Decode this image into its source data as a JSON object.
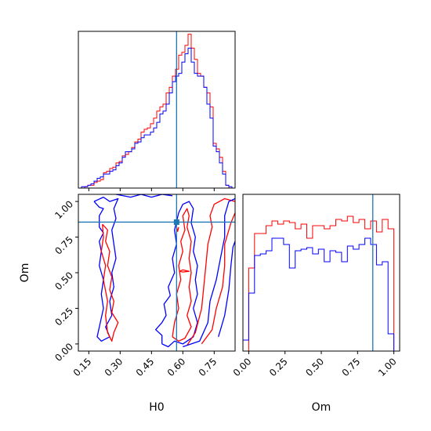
{
  "chart_data": {
    "type": "corner",
    "parameters": [
      "H0",
      "Om"
    ],
    "truth": {
      "H0": 0.57,
      "Om": 0.855,
      "color": "#1f77b4"
    },
    "series": [
      {
        "color": "#ff0000"
      },
      {
        "color": "#0000ff"
      }
    ],
    "panels": [
      {
        "id": "hist-H0",
        "type": "step-histogram",
        "xlim": [
          0.1,
          0.85
        ],
        "ylim": [
          0,
          1.12
        ],
        "xticks": [
          "0.15",
          "0.30",
          "0.45",
          "0.60",
          "0.75"
        ],
        "xtick_values": [
          0.15,
          0.3,
          0.45,
          0.6,
          0.75
        ],
        "show_tick_labels": false,
        "bin_edges": [
          0.1,
          0.115,
          0.13,
          0.145,
          0.16,
          0.175,
          0.19,
          0.205,
          0.22,
          0.235,
          0.25,
          0.265,
          0.28,
          0.295,
          0.31,
          0.325,
          0.34,
          0.355,
          0.37,
          0.385,
          0.4,
          0.415,
          0.43,
          0.445,
          0.46,
          0.475,
          0.49,
          0.505,
          0.52,
          0.535,
          0.55,
          0.565,
          0.58,
          0.595,
          0.61,
          0.625,
          0.64,
          0.655,
          0.67,
          0.685,
          0.7,
          0.715,
          0.73,
          0.745,
          0.76,
          0.775,
          0.79,
          0.805,
          0.82,
          0.835,
          0.85
        ],
        "series": [
          {
            "color": "#ff0000",
            "values": [
              0,
              0,
              0.01,
              0.02,
              0.02,
              0.04,
              0.05,
              0.06,
              0.11,
              0.12,
              0.14,
              0.15,
              0.18,
              0.19,
              0.23,
              0.24,
              0.26,
              0.29,
              0.33,
              0.35,
              0.4,
              0.42,
              0.43,
              0.46,
              0.5,
              0.55,
              0.58,
              0.6,
              0.68,
              0.72,
              0.8,
              0.85,
              0.95,
              0.97,
              1.02,
              1.1,
              1.0,
              0.92,
              0.82,
              0.8,
              0.72,
              0.68,
              0.58,
              0.32,
              0.28,
              0.22,
              0.12,
              0.02,
              0,
              0
            ]
          },
          {
            "color": "#0000ff",
            "values": [
              0,
              0.01,
              0.01,
              0.02,
              0.03,
              0.05,
              0.07,
              0.08,
              0.1,
              0.1,
              0.12,
              0.13,
              0.16,
              0.18,
              0.22,
              0.26,
              0.26,
              0.28,
              0.32,
              0.33,
              0.36,
              0.38,
              0.38,
              0.4,
              0.43,
              0.47,
              0.53,
              0.55,
              0.6,
              0.68,
              0.76,
              0.8,
              0.82,
              0.9,
              0.96,
              1.0,
              0.9,
              0.82,
              0.8,
              0.8,
              0.72,
              0.6,
              0.5,
              0.3,
              0.26,
              0.18,
              0.1,
              0.02,
              0.01,
              0
            ]
          }
        ]
      },
      {
        "id": "contour-H0-Om",
        "type": "contour",
        "xlim": [
          0.1,
          0.85
        ],
        "ylim": [
          -0.05,
          1.05
        ],
        "xticks": [
          "0.15",
          "0.30",
          "0.45",
          "0.60",
          "0.75"
        ],
        "xtick_values": [
          0.15,
          0.3,
          0.45,
          0.6,
          0.75
        ],
        "yticks": [
          "0.00",
          "0.25",
          "0.50",
          "0.75",
          "1.00"
        ],
        "ytick_values": [
          0.0,
          0.25,
          0.5,
          0.75,
          1.0
        ],
        "xlabel": "H0",
        "ylabel": "Om",
        "contours": [
          {
            "color": "#0000ff",
            "points": [
              [
                0.175,
                1.0
              ],
              [
                0.2,
                0.96
              ],
              [
                0.22,
                0.95
              ],
              [
                0.2,
                0.9
              ],
              [
                0.2,
                0.82
              ],
              [
                0.22,
                0.78
              ],
              [
                0.2,
                0.72
              ],
              [
                0.21,
                0.65
              ],
              [
                0.2,
                0.55
              ],
              [
                0.22,
                0.45
              ],
              [
                0.21,
                0.35
              ],
              [
                0.22,
                0.25
              ],
              [
                0.205,
                0.15
              ],
              [
                0.19,
                0.05
              ],
              [
                0.21,
                0.02
              ],
              [
                0.25,
                0.05
              ],
              [
                0.23,
                0.12
              ],
              [
                0.26,
                0.2
              ],
              [
                0.25,
                0.3
              ],
              [
                0.27,
                0.4
              ],
              [
                0.26,
                0.5
              ],
              [
                0.28,
                0.6
              ],
              [
                0.27,
                0.7
              ],
              [
                0.26,
                0.8
              ],
              [
                0.28,
                0.88
              ],
              [
                0.27,
                0.95
              ],
              [
                0.29,
                1.02
              ],
              [
                0.25,
                1.0
              ],
              [
                0.22,
                1.03
              ],
              [
                0.175,
                1.0
              ]
            ]
          },
          {
            "color": "#ff0000",
            "points": [
              [
                0.215,
                0.84
              ],
              [
                0.24,
                0.8
              ],
              [
                0.23,
                0.72
              ],
              [
                0.25,
                0.65
              ],
              [
                0.24,
                0.55
              ],
              [
                0.26,
                0.47
              ],
              [
                0.25,
                0.38
              ],
              [
                0.27,
                0.3
              ],
              [
                0.26,
                0.22
              ],
              [
                0.29,
                0.15
              ],
              [
                0.27,
                0.08
              ],
              [
                0.26,
                0.02
              ],
              [
                0.24,
                0.08
              ],
              [
                0.23,
                0.2
              ],
              [
                0.24,
                0.3
              ],
              [
                0.22,
                0.45
              ],
              [
                0.23,
                0.55
              ],
              [
                0.21,
                0.65
              ],
              [
                0.22,
                0.75
              ],
              [
                0.215,
                0.84
              ]
            ]
          },
          {
            "color": "#0000ff",
            "points": [
              [
                0.28,
                1.05
              ],
              [
                0.35,
                1.03
              ],
              [
                0.4,
                1.05
              ],
              [
                0.45,
                1.03
              ],
              [
                0.5,
                1.05
              ],
              [
                0.55,
                1.04
              ]
            ]
          },
          {
            "color": "#0000ff",
            "points": [
              [
                0.5,
                0.0
              ],
              [
                0.5,
                0.06
              ],
              [
                0.47,
                0.1
              ],
              [
                0.5,
                0.15
              ],
              [
                0.52,
                0.2
              ],
              [
                0.51,
                0.28
              ],
              [
                0.54,
                0.34
              ],
              [
                0.53,
                0.4
              ],
              [
                0.56,
                0.5
              ],
              [
                0.55,
                0.6
              ],
              [
                0.57,
                0.7
              ],
              [
                0.56,
                0.8
              ],
              [
                0.58,
                0.92
              ],
              [
                0.6,
                0.98
              ],
              [
                0.63,
                1.0
              ],
              [
                0.65,
                0.95
              ],
              [
                0.64,
                0.85
              ],
              [
                0.66,
                0.75
              ],
              [
                0.65,
                0.65
              ],
              [
                0.67,
                0.55
              ],
              [
                0.66,
                0.45
              ],
              [
                0.67,
                0.35
              ],
              [
                0.65,
                0.25
              ],
              [
                0.67,
                0.15
              ],
              [
                0.65,
                0.05
              ],
              [
                0.6,
                0.0
              ],
              [
                0.56,
                0.02
              ],
              [
                0.53,
                -0.02
              ],
              [
                0.5,
                0.0
              ]
            ]
          },
          {
            "color": "#ff0000",
            "points": [
              [
                0.55,
                0.05
              ],
              [
                0.56,
                0.15
              ],
              [
                0.58,
                0.25
              ],
              [
                0.57,
                0.35
              ],
              [
                0.59,
                0.45
              ],
              [
                0.58,
                0.55
              ],
              [
                0.6,
                0.65
              ],
              [
                0.59,
                0.72
              ],
              [
                0.61,
                0.8
              ],
              [
                0.6,
                0.9
              ],
              [
                0.62,
                0.95
              ],
              [
                0.63,
                0.9
              ],
              [
                0.62,
                0.82
              ],
              [
                0.64,
                0.72
              ],
              [
                0.63,
                0.6
              ],
              [
                0.64,
                0.5
              ],
              [
                0.63,
                0.4
              ],
              [
                0.64,
                0.3
              ],
              [
                0.62,
                0.2
              ],
              [
                0.64,
                0.12
              ],
              [
                0.61,
                0.04
              ],
              [
                0.58,
                0.02
              ],
              [
                0.55,
                0.05
              ]
            ]
          },
          {
            "color": "#ff0000",
            "points": [
              [
                0.62,
                -0.01
              ],
              [
                0.66,
                0.08
              ],
              [
                0.69,
                0.25
              ],
              [
                0.7,
                0.4
              ],
              [
                0.71,
                0.55
              ],
              [
                0.72,
                0.7
              ],
              [
                0.74,
                0.82
              ],
              [
                0.73,
                0.9
              ],
              [
                0.75,
                0.98
              ],
              [
                0.8,
                1.02
              ],
              [
                0.85,
                1.0
              ]
            ]
          },
          {
            "color": "#0000ff",
            "points": [
              [
                0.6,
                -0.02
              ],
              [
                0.68,
                0.02
              ],
              [
                0.72,
                0.15
              ],
              [
                0.73,
                0.3
              ],
              [
                0.76,
                0.45
              ],
              [
                0.78,
                0.6
              ],
              [
                0.8,
                0.75
              ],
              [
                0.8,
                0.9
              ],
              [
                0.82,
                1.0
              ],
              [
                0.85,
                1.02
              ]
            ]
          },
          {
            "color": "#ff0000",
            "points": [
              [
                0.69,
                0.0
              ],
              [
                0.74,
                0.1
              ],
              [
                0.76,
                0.25
              ],
              [
                0.79,
                0.4
              ],
              [
                0.8,
                0.55
              ],
              [
                0.8,
                0.7
              ],
              [
                0.83,
                0.85
              ],
              [
                0.85,
                0.92
              ]
            ]
          },
          {
            "color": "#0000ff",
            "points": [
              [
                0.77,
                0.05
              ],
              [
                0.8,
                0.2
              ],
              [
                0.82,
                0.38
              ],
              [
                0.83,
                0.55
              ],
              [
                0.84,
                0.68
              ],
              [
                0.85,
                0.72
              ]
            ]
          },
          {
            "color": "#ff0000",
            "points": [
              [
                0.585,
                0.51
              ],
              [
                0.6,
                0.52
              ],
              [
                0.63,
                0.51
              ],
              [
                0.6,
                0.505
              ],
              [
                0.585,
                0.51
              ]
            ]
          },
          {
            "color": "#ff0000",
            "points": [
              [
                0.57,
                0.82
              ],
              [
                0.575,
                0.79
              ],
              [
                0.58,
                0.82
              ]
            ]
          }
        ]
      },
      {
        "id": "hist-Om",
        "type": "step-histogram",
        "xlim": [
          -0.04,
          1.04
        ],
        "ylim": [
          0,
          1.0
        ],
        "xticks": [
          "0.00",
          "0.25",
          "0.50",
          "0.75",
          "1.00"
        ],
        "xtick_values": [
          0.0,
          0.25,
          0.5,
          0.75,
          1.0
        ],
        "xlabel": "Om",
        "bin_edges": [
          -0.04,
          0.0,
          0.04,
          0.08,
          0.12,
          0.16,
          0.2,
          0.24,
          0.28,
          0.32,
          0.36,
          0.4,
          0.44,
          0.48,
          0.52,
          0.56,
          0.6,
          0.64,
          0.68,
          0.72,
          0.76,
          0.8,
          0.84,
          0.88,
          0.92,
          0.96,
          1.0,
          1.04
        ],
        "series": [
          {
            "color": "#ff0000",
            "values": [
              0,
              0.53,
              0.75,
              0.75,
              0.8,
              0.83,
              0.81,
              0.83,
              0.82,
              0.78,
              0.81,
              0.72,
              0.8,
              0.8,
              0.78,
              0.8,
              0.84,
              0.83,
              0.86,
              0.82,
              0.84,
              0.78,
              0.83,
              0.76,
              0.84,
              0.78,
              0
            ]
          },
          {
            "color": "#0000ff",
            "values": [
              0.07,
              0.37,
              0.61,
              0.62,
              0.64,
              0.72,
              0.72,
              0.68,
              0.53,
              0.64,
              0.65,
              0.66,
              0.62,
              0.65,
              0.57,
              0.64,
              0.63,
              0.57,
              0.67,
              0.65,
              0.68,
              0.72,
              0.68,
              0.55,
              0.57,
              0.11,
              0
            ]
          }
        ]
      }
    ]
  }
}
